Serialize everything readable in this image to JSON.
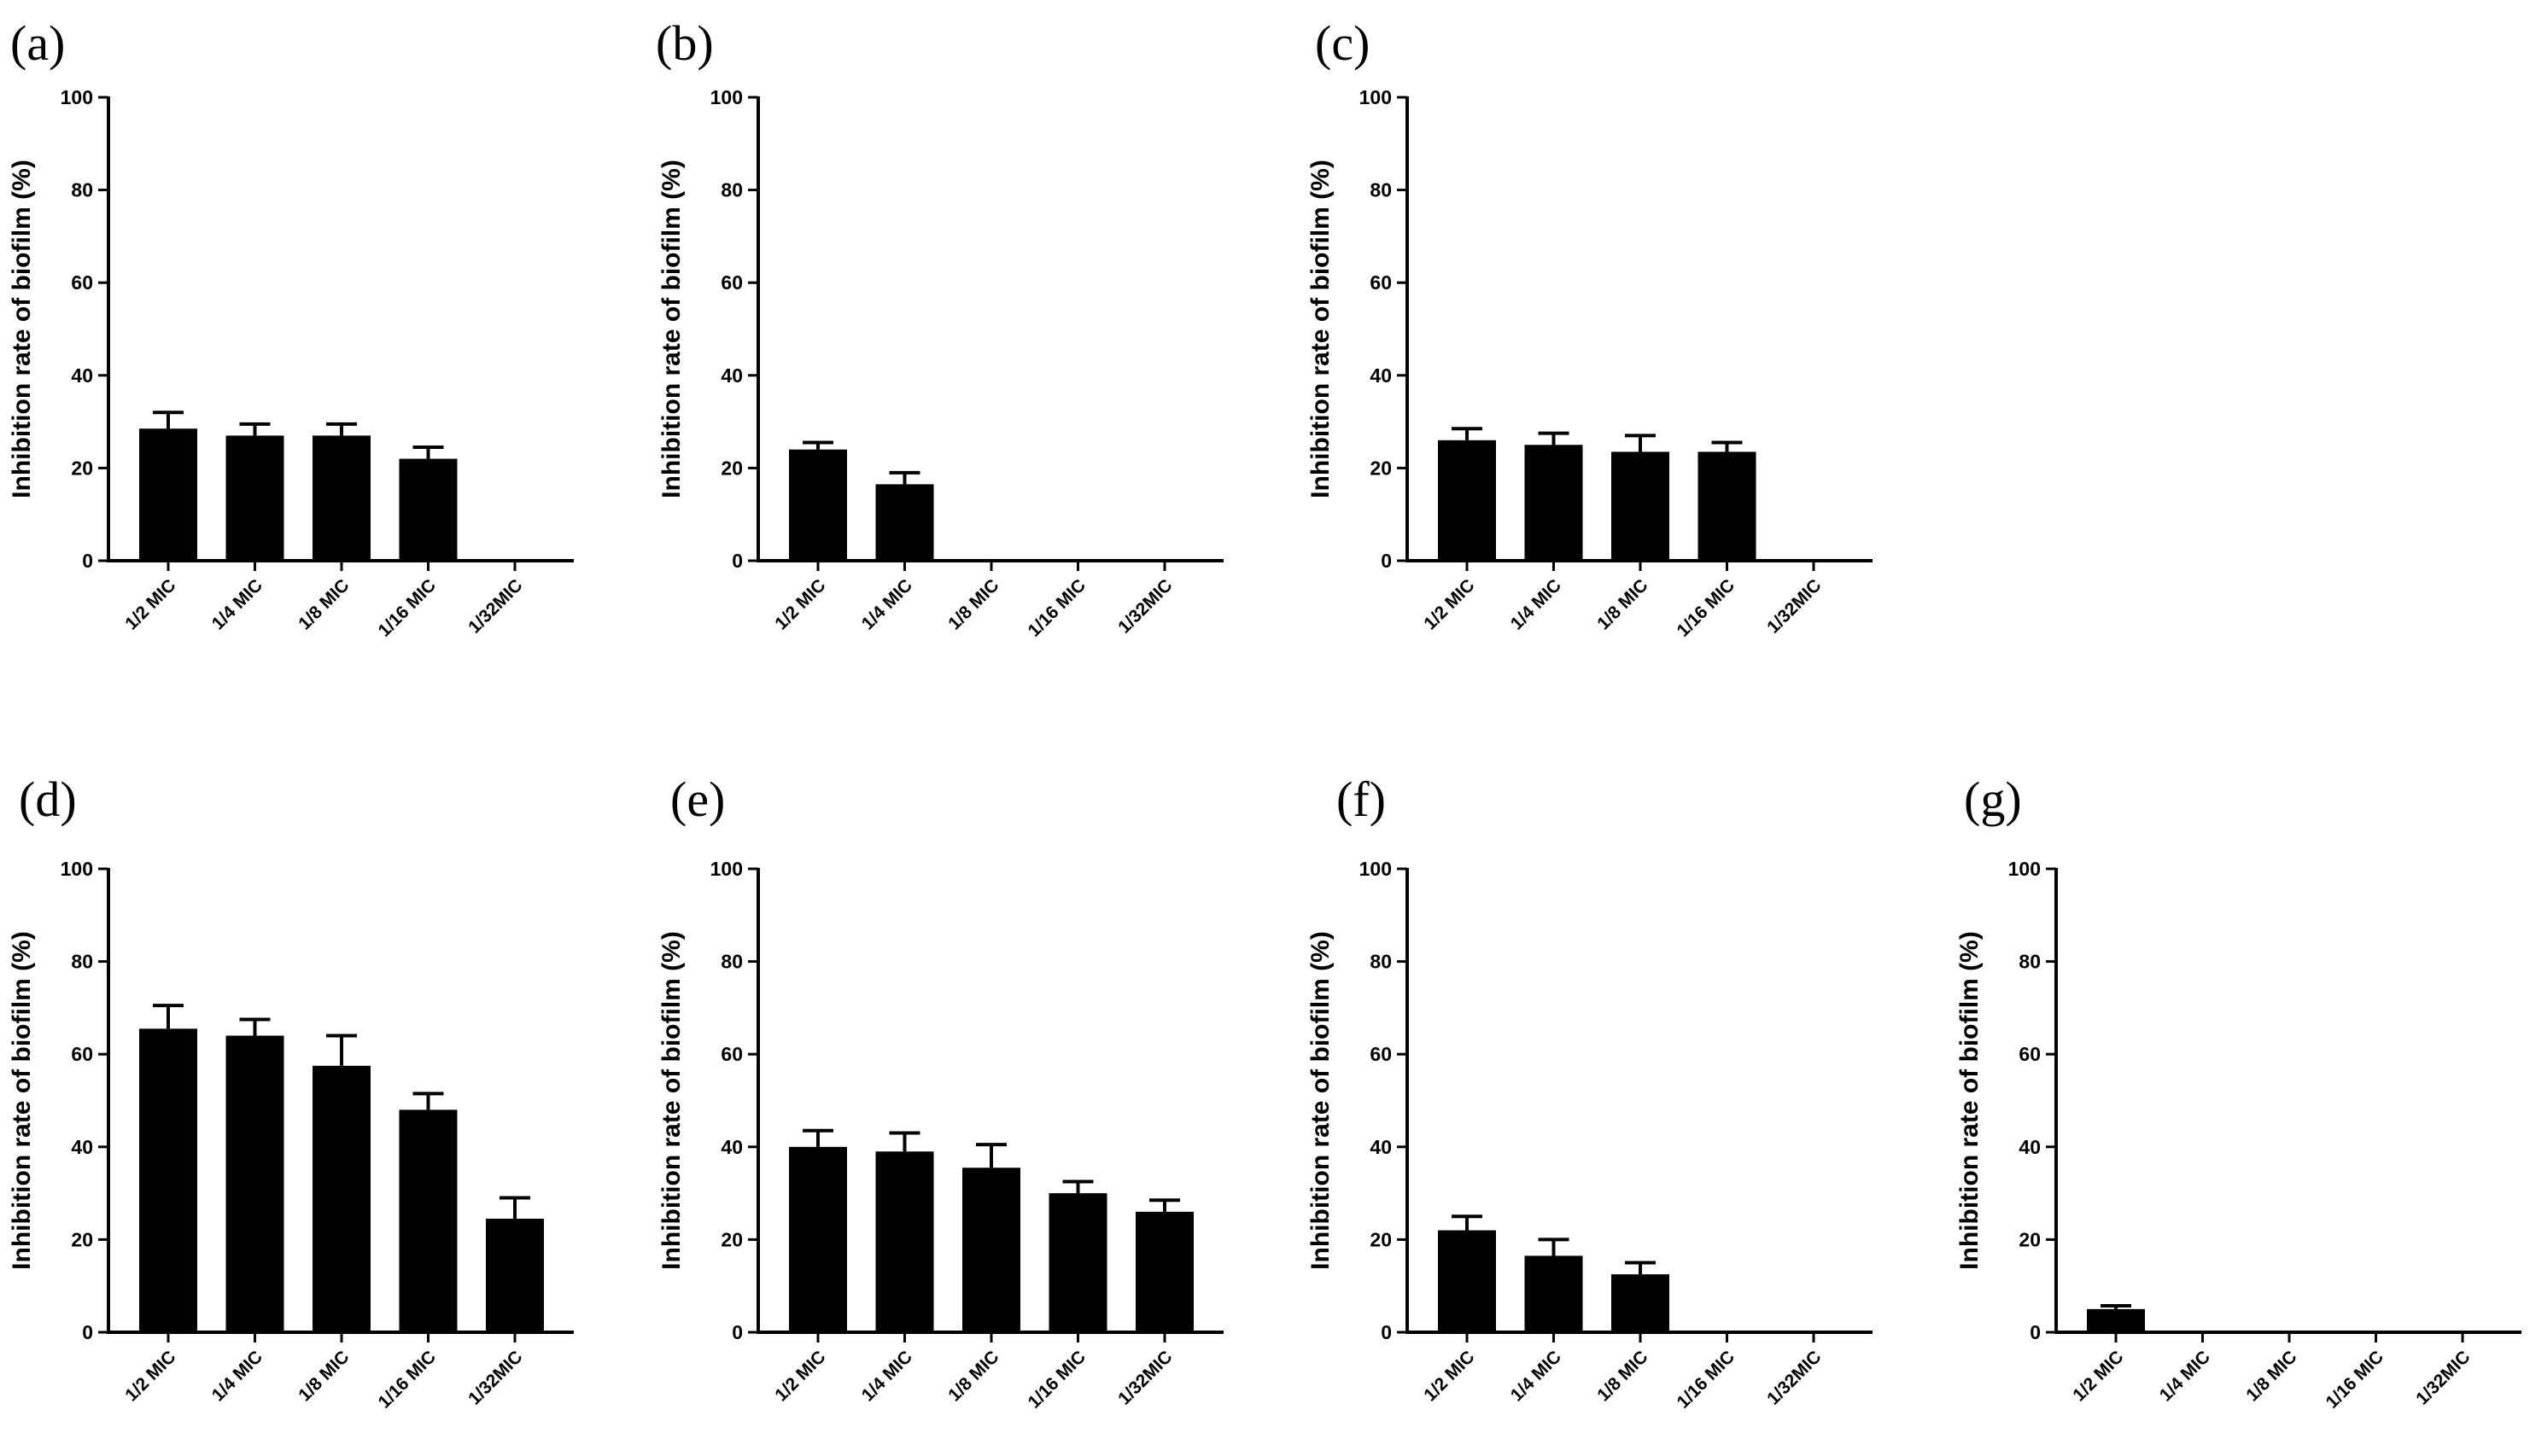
{
  "chart_data": [
    {
      "type": "bar",
      "panel_label": "(a)",
      "ylabel": "Inhibition rate of biofilm (%)",
      "ylim": [
        0,
        100
      ],
      "yticks": [
        "0",
        "20",
        "40",
        "60",
        "80",
        "100"
      ],
      "categories": [
        "1/2 MIC",
        "1/4 MIC",
        "1/8 MIC",
        "1/16 MIC",
        "1/32MIC"
      ],
      "values": [
        28.5,
        27,
        27,
        22,
        0
      ],
      "errors": [
        3.5,
        2.5,
        2.5,
        2.5,
        0
      ],
      "bar_color": "#000000"
    },
    {
      "type": "bar",
      "panel_label": "(b)",
      "ylabel": "Inhibition rate of biofilm (%)",
      "ylim": [
        0,
        100
      ],
      "yticks": [
        "0",
        "20",
        "40",
        "60",
        "80",
        "100"
      ],
      "categories": [
        "1/2 MIC",
        "1/4 MIC",
        "1/8 MIC",
        "1/16 MIC",
        "1/32MIC"
      ],
      "values": [
        24,
        16.5,
        0,
        0,
        0
      ],
      "errors": [
        1.5,
        2.5,
        0,
        0,
        0
      ],
      "bar_color": "#000000"
    },
    {
      "type": "bar",
      "panel_label": "(c)",
      "ylabel": "Inhibition rate of biofilm (%)",
      "ylim": [
        0,
        100
      ],
      "yticks": [
        "0",
        "20",
        "40",
        "60",
        "80",
        "100"
      ],
      "categories": [
        "1/2 MIC",
        "1/4 MIC",
        "1/8 MIC",
        "1/16 MIC",
        "1/32MIC"
      ],
      "values": [
        26,
        25,
        23.5,
        23.5,
        0
      ],
      "errors": [
        2.5,
        2.5,
        3.5,
        2,
        0
      ],
      "bar_color": "#000000"
    },
    {
      "type": "bar",
      "panel_label": "(d)",
      "ylabel": "Inhibition rate of biofilm (%)",
      "ylim": [
        0,
        100
      ],
      "yticks": [
        "0",
        "20",
        "40",
        "60",
        "80",
        "100"
      ],
      "categories": [
        "1/2 MIC",
        "1/4 MIC",
        "1/8 MIC",
        "1/16 MIC",
        "1/32MIC"
      ],
      "values": [
        65.5,
        64,
        57.5,
        48,
        24.5
      ],
      "errors": [
        5,
        3.5,
        6.5,
        3.5,
        4.5
      ],
      "bar_color": "#000000"
    },
    {
      "type": "bar",
      "panel_label": "(e)",
      "ylabel": "Inhibition rate of biofilm (%)",
      "ylim": [
        0,
        100
      ],
      "yticks": [
        "0",
        "20",
        "40",
        "60",
        "80",
        "100"
      ],
      "categories": [
        "1/2 MIC",
        "1/4 MIC",
        "1/8 MIC",
        "1/16 MIC",
        "1/32MIC"
      ],
      "values": [
        40,
        39,
        35.5,
        30,
        26
      ],
      "errors": [
        3.5,
        4,
        5,
        2.5,
        2.5
      ],
      "bar_color": "#000000"
    },
    {
      "type": "bar",
      "panel_label": "(f)",
      "ylabel": "Inhibition rate of biofilm (%)",
      "ylim": [
        0,
        100
      ],
      "yticks": [
        "0",
        "20",
        "40",
        "60",
        "80",
        "100"
      ],
      "categories": [
        "1/2 MIC",
        "1/4 MIC",
        "1/8 MIC",
        "1/16 MIC",
        "1/32MIC"
      ],
      "values": [
        22,
        16.5,
        12.5,
        0,
        0
      ],
      "errors": [
        3,
        3.5,
        2.5,
        0,
        0
      ],
      "bar_color": "#000000"
    },
    {
      "type": "bar",
      "panel_label": "(g)",
      "ylabel": "Inhibition rate of biofilm (%)",
      "ylim": [
        0,
        100
      ],
      "yticks": [
        "0",
        "20",
        "40",
        "60",
        "80",
        "100"
      ],
      "categories": [
        "1/2 MIC",
        "1/4 MIC",
        "1/8 MIC",
        "1/16 MIC",
        "1/32MIC"
      ],
      "values": [
        5,
        0,
        0,
        0,
        0
      ],
      "errors": [
        0.7,
        0,
        0,
        0,
        0
      ],
      "bar_color": "#000000"
    }
  ]
}
